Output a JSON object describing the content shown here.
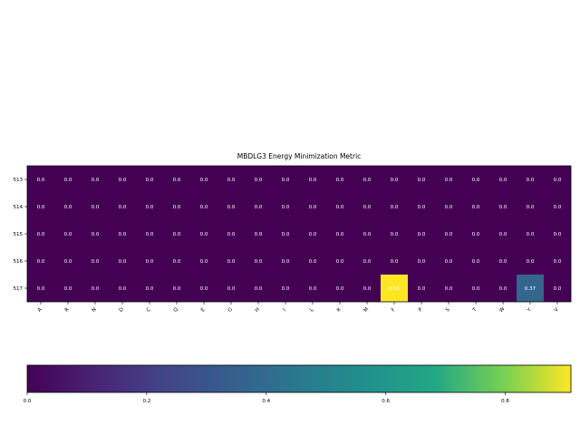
{
  "chart_data": {
    "type": "heatmap",
    "title": "MBDLG3 Energy Minimization Metric",
    "xlabel": "",
    "ylabel": "",
    "rows": [
      "513",
      "514",
      "515",
      "516",
      "517"
    ],
    "columns": [
      "A",
      "R",
      "N",
      "D",
      "C",
      "Q",
      "E",
      "G",
      "H",
      "I",
      "L",
      "K",
      "M",
      "F",
      "P",
      "S",
      "T",
      "W",
      "Y",
      "V"
    ],
    "values": [
      [
        0.0,
        0.0,
        0.0,
        0.0,
        0.0,
        0.0,
        0.0,
        0.0,
        0.0,
        0.0,
        0.0,
        0.0,
        0.0,
        0.0,
        0.0,
        0.0,
        0.0,
        0.0,
        0.0,
        0.0
      ],
      [
        0.0,
        0.0,
        0.0,
        0.0,
        0.0,
        0.0,
        0.0,
        0.0,
        0.0,
        0.0,
        0.0,
        0.0,
        0.0,
        0.0,
        0.0,
        0.0,
        0.0,
        0.0,
        0.0,
        0.0
      ],
      [
        0.0,
        0.0,
        0.0,
        0.0,
        0.0,
        0.0,
        0.0,
        0.0,
        0.0,
        0.0,
        0.0,
        0.0,
        0.0,
        0.0,
        0.0,
        0.0,
        0.0,
        0.0,
        0.0,
        0.0
      ],
      [
        0.0,
        0.0,
        0.0,
        0.0,
        0.0,
        0.0,
        0.0,
        0.0,
        0.0,
        0.0,
        0.0,
        0.0,
        0.0,
        0.0,
        0.0,
        0.0,
        0.0,
        0.0,
        0.0,
        0.0
      ],
      [
        0.0,
        0.0,
        0.0,
        0.0,
        0.0,
        0.0,
        0.0,
        0.0,
        0.0,
        0.0,
        0.0,
        0.0,
        0.0,
        0.91,
        0.0,
        0.0,
        0.0,
        0.0,
        0.37,
        0.0
      ]
    ],
    "cell_labels": [
      [
        "0.0",
        "0.0",
        "0.0",
        "0.0",
        "0.0",
        "0.0",
        "0.0",
        "0.0",
        "0.0",
        "0.0",
        "0.0",
        "0.0",
        "0.0",
        "0.0",
        "0.0",
        "0.0",
        "0.0",
        "0.0",
        "0.0",
        "0.0"
      ],
      [
        "0.0",
        "0.0",
        "0.0",
        "0.0",
        "0.0",
        "0.0",
        "0.0",
        "0.0",
        "0.0",
        "0.0",
        "0.0",
        "0.0",
        "0.0",
        "0.0",
        "0.0",
        "0.0",
        "0.0",
        "0.0",
        "0.0",
        "0.0"
      ],
      [
        "0.0",
        "0.0",
        "0.0",
        "0.0",
        "0.0",
        "0.0",
        "0.0",
        "0.0",
        "0.0",
        "0.0",
        "0.0",
        "0.0",
        "0.0",
        "0.0",
        "0.0",
        "0.0",
        "0.0",
        "0.0",
        "0.0",
        "0.0"
      ],
      [
        "0.0",
        "0.0",
        "0.0",
        "0.0",
        "0.0",
        "0.0",
        "0.0",
        "0.0",
        "0.0",
        "0.0",
        "0.0",
        "0.0",
        "0.0",
        "0.0",
        "0.0",
        "0.0",
        "0.0",
        "0.0",
        "0.0",
        "0.0"
      ],
      [
        "0.0",
        "0.0",
        "0.0",
        "0.0",
        "0.0",
        "0.0",
        "0.0",
        "0.0",
        "0.0",
        "0.0",
        "0.0",
        "0.0",
        "0.0",
        "0.91",
        "0.0",
        "0.0",
        "0.0",
        "0.0",
        "0.37",
        "0.0"
      ]
    ],
    "colormap": "viridis",
    "color_range": [
      0,
      0.91
    ],
    "colorbar": {
      "orientation": "horizontal",
      "placement": "bottom",
      "ticks": [
        0.0,
        0.2,
        0.4,
        0.6,
        0.8
      ],
      "tick_labels": [
        "0.0",
        "0.2",
        "0.4",
        "0.6",
        "0.8"
      ]
    },
    "grid": false,
    "colors": {
      "low": "#440154",
      "mid": "#21918c",
      "high": "#fde725",
      "label_on_dark": "#ffffff"
    }
  }
}
